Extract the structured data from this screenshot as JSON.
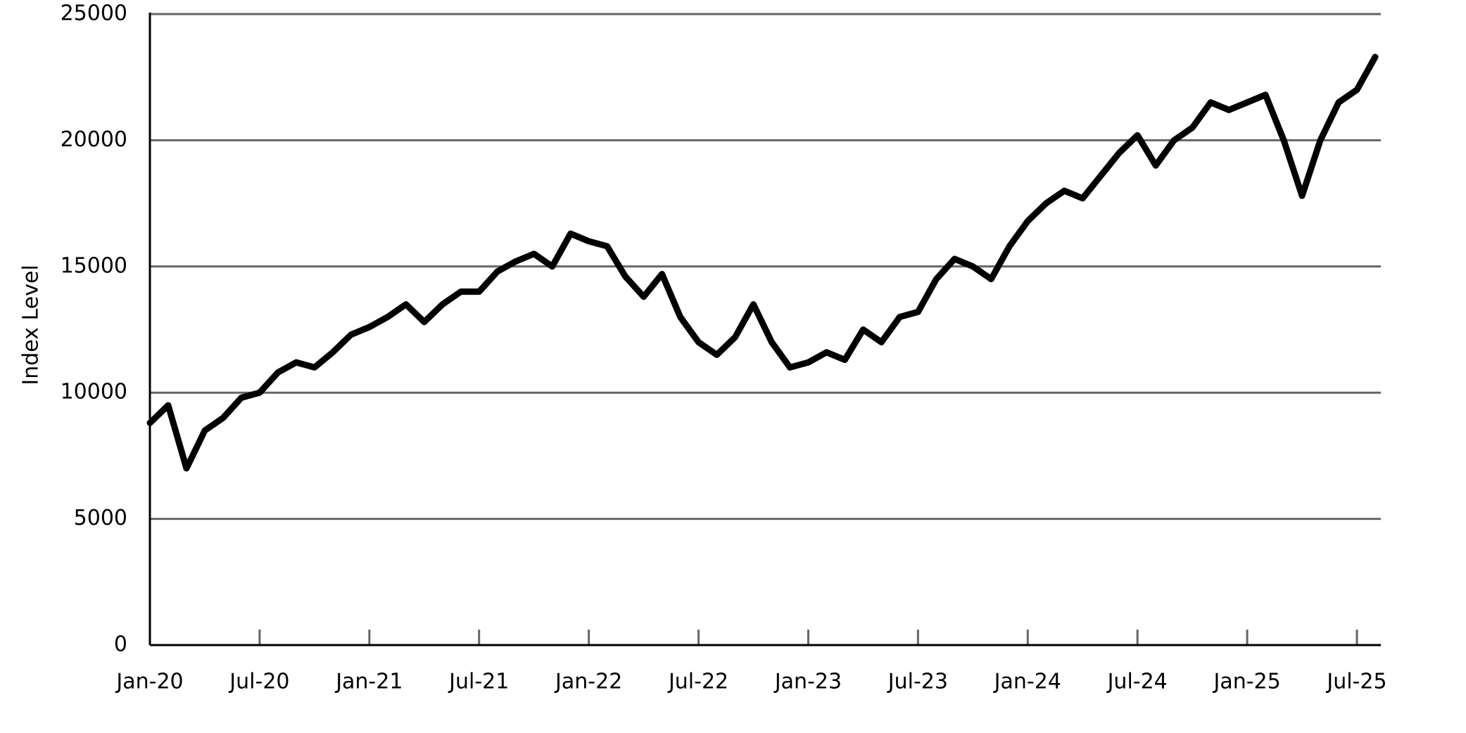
{
  "chart_data": {
    "type": "line",
    "ylabel": "Index Level",
    "x": [
      "2020-01",
      "2020-02",
      "2020-03",
      "2020-04",
      "2020-05",
      "2020-06",
      "2020-07",
      "2020-08",
      "2020-09",
      "2020-10",
      "2020-11",
      "2020-12",
      "2021-01",
      "2021-02",
      "2021-03",
      "2021-04",
      "2021-05",
      "2021-06",
      "2021-07",
      "2021-08",
      "2021-09",
      "2021-10",
      "2021-11",
      "2021-12",
      "2022-01",
      "2022-02",
      "2022-03",
      "2022-04",
      "2022-05",
      "2022-06",
      "2022-07",
      "2022-08",
      "2022-09",
      "2022-10",
      "2022-11",
      "2022-12",
      "2023-01",
      "2023-02",
      "2023-03",
      "2023-04",
      "2023-05",
      "2023-06",
      "2023-07",
      "2023-08",
      "2023-09",
      "2023-10",
      "2023-11",
      "2023-12",
      "2024-01",
      "2024-02",
      "2024-03",
      "2024-04",
      "2024-05",
      "2024-06",
      "2024-07",
      "2024-08",
      "2024-09",
      "2024-10",
      "2024-11",
      "2024-12",
      "2025-01",
      "2025-02",
      "2025-03",
      "2025-04",
      "2025-05",
      "2025-06",
      "2025-07",
      "2025-08"
    ],
    "series": [
      {
        "name": "Index Level",
        "color": "#000000",
        "values": [
          8800,
          9500,
          7000,
          8500,
          9000,
          9800,
          10000,
          10800,
          11200,
          11000,
          11600,
          12300,
          12600,
          13000,
          13500,
          12800,
          13500,
          14000,
          14000,
          14800,
          15200,
          15500,
          15000,
          16300,
          16000,
          15800,
          14600,
          13800,
          14700,
          13000,
          12000,
          11500,
          12200,
          13500,
          12000,
          11000,
          11200,
          11600,
          11300,
          12500,
          12000,
          13000,
          13200,
          14500,
          15300,
          15000,
          14500,
          15800,
          16800,
          17500,
          18000,
          17700,
          18600,
          19500,
          20200,
          19000,
          20000,
          20500,
          21500,
          21200,
          21500,
          21800,
          20000,
          17800,
          20000,
          21500,
          22000,
          23300
        ]
      }
    ],
    "xlim": [
      "2020-01",
      "2025-08"
    ],
    "xticks": [
      {
        "value": "2020-01",
        "label": "Jan-20"
      },
      {
        "value": "2020-07",
        "label": "Jul-20"
      },
      {
        "value": "2021-01",
        "label": "Jan-21"
      },
      {
        "value": "2021-07",
        "label": "Jul-21"
      },
      {
        "value": "2022-01",
        "label": "Jan-22"
      },
      {
        "value": "2022-07",
        "label": "Jul-22"
      },
      {
        "value": "2023-01",
        "label": "Jan-23"
      },
      {
        "value": "2023-07",
        "label": "Jul-23"
      },
      {
        "value": "2024-01",
        "label": "Jan-24"
      },
      {
        "value": "2024-07",
        "label": "Jul-24"
      },
      {
        "value": "2025-01",
        "label": "Jan-25"
      },
      {
        "value": "2025-07",
        "label": "Jul-25"
      }
    ],
    "ylim": [
      0,
      25000
    ],
    "yticks": [
      0,
      5000,
      10000,
      15000,
      20000,
      25000
    ],
    "grid": true
  }
}
